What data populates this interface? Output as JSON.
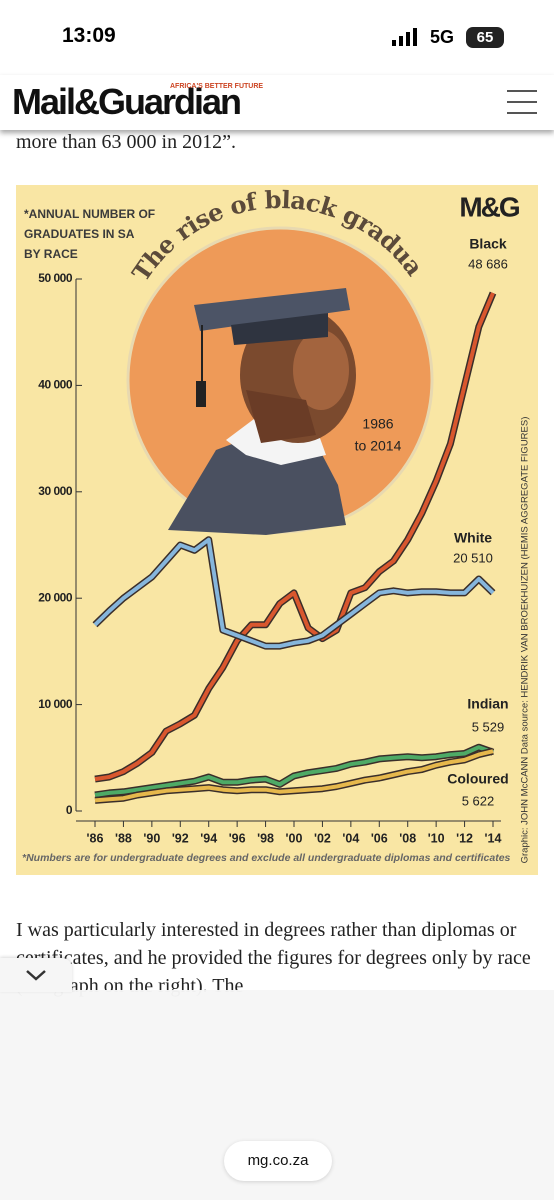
{
  "status_bar": {
    "time": "13:09",
    "network": "5G",
    "battery": "65"
  },
  "header": {
    "logo": "Mail&Guardian",
    "tagline": "AFRICA'S BETTER FUTURE"
  },
  "article": {
    "before": "more than 63 000 in 2012”.",
    "after": "I was particularly interested in degrees rather than diplomas or certificates, and he provided the figures for degrees only by race (see graph on the right). The"
  },
  "chart_data": {
    "type": "line",
    "title": "The rise of black graduates",
    "subtitle": [
      "*ANNUAL NUMBER OF",
      "GRADUATES IN SA",
      "BY RACE"
    ],
    "logo": "M&G",
    "annotation": [
      "1986",
      "to 2014"
    ],
    "footnote": "*Numbers are for undergraduate degrees and exclude all undergraduate diplomas and certificates",
    "credit": "Graphic: JOHN McCANN Data source: HENDRIK VAN BROEKHUIZEN (HEMIS AGGREGATE FIGURES)",
    "x": [
      1986,
      1987,
      1988,
      1989,
      1990,
      1991,
      1992,
      1993,
      1994,
      1995,
      1996,
      1997,
      1998,
      1999,
      2000,
      2001,
      2002,
      2003,
      2004,
      2005,
      2006,
      2007,
      2008,
      2009,
      2010,
      2011,
      2012,
      2013,
      2014
    ],
    "series": [
      {
        "name": "Black",
        "color": "#d9572e",
        "end_label": "48 686",
        "values": [
          3000,
          3200,
          3700,
          4500,
          5500,
          7500,
          8200,
          9000,
          11500,
          13500,
          16000,
          17500,
          17500,
          19500,
          20500,
          17200,
          16200,
          17000,
          20500,
          21000,
          22500,
          23500,
          25500,
          28000,
          31000,
          34500,
          40000,
          45500,
          48686
        ]
      },
      {
        "name": "White",
        "color": "#86b6dc",
        "end_label": "20 510",
        "values": [
          17500,
          18800,
          20000,
          21000,
          22000,
          23500,
          25000,
          24500,
          25500,
          17000,
          16500,
          16000,
          15500,
          15500,
          15800,
          16000,
          16500,
          17500,
          18500,
          19500,
          20500,
          20700,
          20500,
          20600,
          20600,
          20500,
          20500,
          21800,
          20510
        ]
      },
      {
        "name": "Indian",
        "color": "#4eaa66",
        "end_label": "5 529",
        "values": [
          1500,
          1700,
          1800,
          2000,
          2200,
          2400,
          2600,
          2800,
          3200,
          2700,
          2700,
          2900,
          3000,
          2500,
          3300,
          3600,
          3800,
          4000,
          4400,
          4600,
          4900,
          5000,
          5100,
          5000,
          5100,
          5300,
          5400,
          6000,
          5529
        ]
      },
      {
        "name": "Coloured",
        "color": "#e6b84c",
        "end_label": "5 622",
        "values": [
          1000,
          1100,
          1200,
          1500,
          1700,
          1900,
          2000,
          2100,
          2200,
          2000,
          1900,
          2000,
          2000,
          1800,
          1900,
          2000,
          2100,
          2300,
          2600,
          2900,
          3100,
          3400,
          3700,
          3900,
          4300,
          4600,
          4800,
          5300,
          5622
        ]
      }
    ],
    "xlim": [
      1986,
      2014
    ],
    "xticks": [
      {
        "value": 1986,
        "label": "'86"
      },
      {
        "value": 1988,
        "label": "'88"
      },
      {
        "value": 1990,
        "label": "'90"
      },
      {
        "value": 1992,
        "label": "'92"
      },
      {
        "value": 1994,
        "label": "'94"
      },
      {
        "value": 1996,
        "label": "'96"
      },
      {
        "value": 1998,
        "label": "'98"
      },
      {
        "value": 2000,
        "label": "'00"
      },
      {
        "value": 2002,
        "label": "'02"
      },
      {
        "value": 2004,
        "label": "'04"
      },
      {
        "value": 2006,
        "label": "'06"
      },
      {
        "value": 2008,
        "label": "'08"
      },
      {
        "value": 2010,
        "label": "'10"
      },
      {
        "value": 2012,
        "label": "'12"
      },
      {
        "value": 2014,
        "label": "'14"
      }
    ],
    "ylim": [
      0,
      50000
    ],
    "yticks": [
      0,
      {
        "value": 10000,
        "label": "10 000"
      },
      {
        "value": 20000,
        "label": "20 000"
      },
      {
        "value": 30000,
        "label": "30 000"
      },
      {
        "value": 40000,
        "label": "40 000"
      },
      {
        "value": 50000,
        "label": "50 000"
      }
    ]
  },
  "url_bar": {
    "url": "mg.co.za"
  }
}
